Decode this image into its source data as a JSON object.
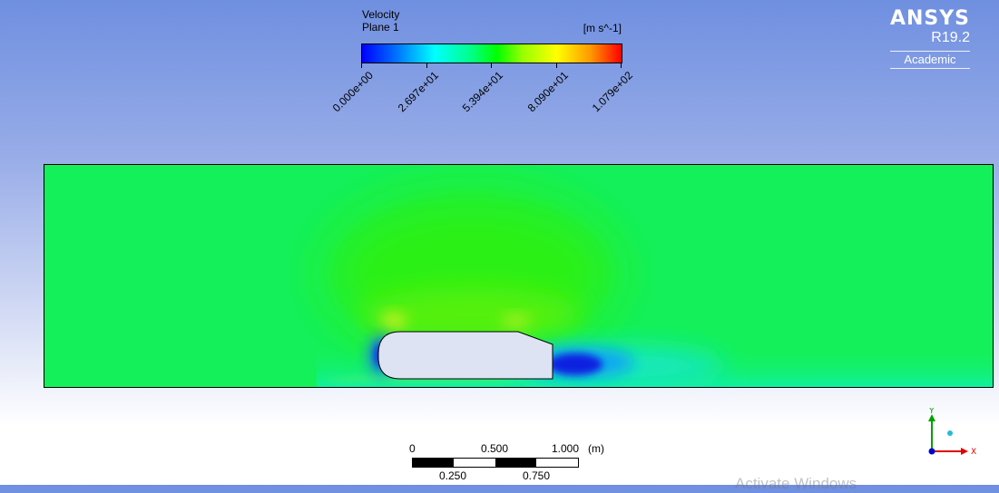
{
  "legend": {
    "title": "Velocity",
    "subtitle": "Plane 1",
    "units": "[m s^-1]",
    "ticks": [
      "0.000e+00",
      "2.697e+01",
      "5.394e+01",
      "8.090e+01",
      "1.079e+02"
    ],
    "colors": [
      "#0000ff",
      "#00ffff",
      "#00ff00",
      "#ffff00",
      "#ff0000"
    ]
  },
  "logo": {
    "name": "ANSYS",
    "version": "R19.2",
    "edition": "Academic"
  },
  "scale": {
    "top_labels": [
      "0",
      "0.500",
      "1.000"
    ],
    "unit": "(m)",
    "bottom_labels": [
      "0.250",
      "0.750"
    ]
  },
  "axes": {
    "y_label": "Y",
    "x_label": "X",
    "y_color": "#00a000",
    "x_color": "#e00000",
    "z_color": "#0000cc"
  },
  "watermark": "Activate Windows"
}
